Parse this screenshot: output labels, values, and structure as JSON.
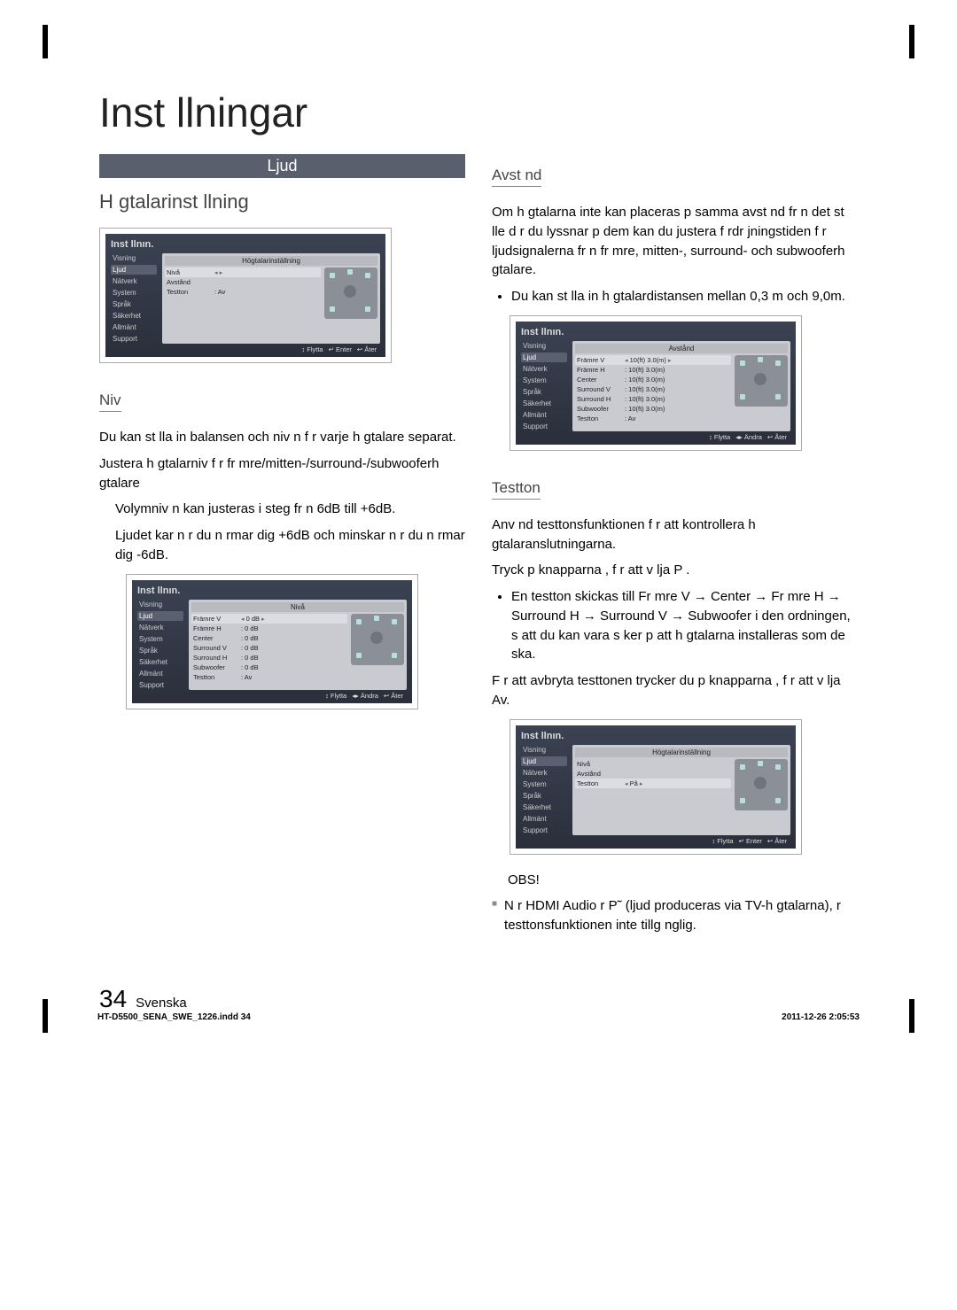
{
  "page": {
    "title": "Inst llningar",
    "number": "34",
    "language": "Svenska",
    "doc_file": "HT-D5500_SENA_SWE_1226.indd   34",
    "doc_timestamp": "2011-12-26   2:05:53"
  },
  "colors": {
    "header_bg": "#5a5f6e",
    "text": "#333"
  },
  "left": {
    "ljud_label": "Ljud",
    "heading": "H gtalarinst llning",
    "niva_heading": "Niv",
    "niva_p1": "Du kan st lla in balansen och niv n f r varje h gtalare separat.",
    "niva_p2": "Justera h gtalarniv  f r fr mre/mitten-/surround-/subwooferh gtalare",
    "niva_b1": "Volymniv n kan justeras i steg fr n  6dB till +6dB.",
    "niva_b2": "Ljudet  kar n r du n rmar dig +6dB och minskar n r du n rmar dig -6dB."
  },
  "right": {
    "avstand_heading": "Avst nd",
    "avstand_p1": "Om h gtalarna inte kan placeras p  samma avst nd fr n det st lle d r du lyssnar p  dem kan du justera f rdr jningstiden f r ljudsignalerna fr n fr mre, mitten-, surround- och subwooferh gtalare.",
    "avstand_b1": "Du kan st lla in h gtalardistansen mellan 0,3 m och 9,0m.",
    "testton_heading": "Testton",
    "testton_p1": "Anv nd testtonsfunktionen f r att kontrollera h gtalaranslutningarna.",
    "testton_p2": "Tryck p  knapparna  ,  f r att v lja         P .",
    "testton_b1": "En testton skickas till Fr mre V → Center → Fr mre H → Surround H → Surround V → Subwoofer i den ordningen, s  att du kan vara s ker p  att h gtalarna installeras som de ska.",
    "testton_p3": "F r att avbryta testtonen trycker du p  knapparna  ,  f r att v lja Av.",
    "obs_heading": "OBS!",
    "obs_b1": "N r HDMI Audio  r P˜ (ljud produceras via TV-h gtalarna),  r testtonsfunktionen inte tillg nglig."
  },
  "ui": {
    "title": "Inst llnın.",
    "sidebar": [
      "Visning",
      "Ljud",
      "Nätverk",
      "System",
      "Språk",
      "Säkerhet",
      "Allmänt",
      "Support"
    ],
    "selected_index": 1,
    "shot1": {
      "main_title": "Högtalarinställning",
      "rows": [
        {
          "lbl": "Nivå",
          "val": "",
          "sel": true,
          "arrow": true
        },
        {
          "lbl": "Avstånd",
          "val": ""
        },
        {
          "lbl": "Testton",
          "val": ":    Av"
        }
      ],
      "footer": [
        "↕ Flytta",
        "↵ Enter",
        "↩ Åter"
      ]
    },
    "shot2": {
      "main_title": "Nivå",
      "rows": [
        {
          "lbl": "Främre V",
          "val": "0 dB",
          "sel": true,
          "arrow": true
        },
        {
          "lbl": "Främre H",
          "val": ":   0 dB"
        },
        {
          "lbl": "Center",
          "val": ":   0 dB"
        },
        {
          "lbl": "Surround V",
          "val": ":   0 dB"
        },
        {
          "lbl": "Surround H",
          "val": ":   0 dB"
        },
        {
          "lbl": "Subwoofer",
          "val": ":   0 dB"
        },
        {
          "lbl": "Testton",
          "val": ":   Av"
        }
      ],
      "footer": [
        "↕ Flytta",
        "◂▸ Ändra",
        "↩ Åter"
      ]
    },
    "shot3": {
      "main_title": "Avstånd",
      "rows": [
        {
          "lbl": "Främre V",
          "val": "10(ft) 3.0(m)",
          "sel": true,
          "arrow": true
        },
        {
          "lbl": "Främre H",
          "val": ":   10(ft) 3.0(m)"
        },
        {
          "lbl": "Center",
          "val": ":   10(ft) 3.0(m)"
        },
        {
          "lbl": "Surround V",
          "val": ":   10(ft) 3.0(m)"
        },
        {
          "lbl": "Surround H",
          "val": ":   10(ft) 3.0(m)"
        },
        {
          "lbl": "Subwoofer",
          "val": ":   10(ft) 3.0(m)"
        },
        {
          "lbl": "Testton",
          "val": ":   Av"
        }
      ],
      "footer": [
        "↕ Flytta",
        "◂▸ Ändra",
        "↩ Åter"
      ]
    },
    "shot4": {
      "main_title": "Högtalarinställning",
      "rows": [
        {
          "lbl": "Nivå",
          "val": ""
        },
        {
          "lbl": "Avstånd",
          "val": ""
        },
        {
          "lbl": "Testton",
          "val": "På",
          "sel": true,
          "arrow": true
        }
      ],
      "footer": [
        "↕ Flytta",
        "↵ Enter",
        "↩ Åter"
      ]
    }
  }
}
